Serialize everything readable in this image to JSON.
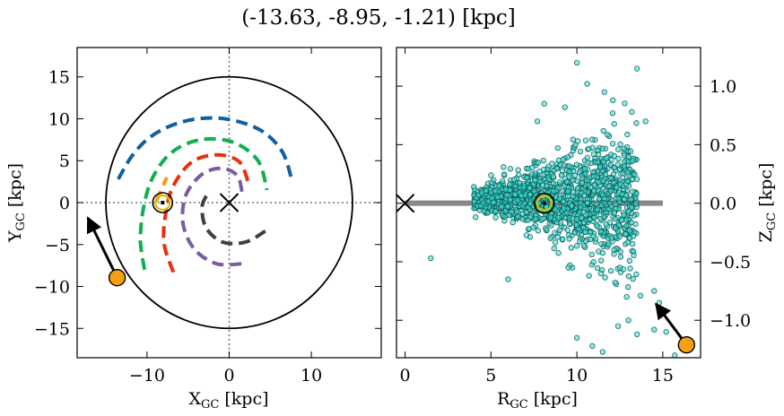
{
  "title": "(-13.63, -8.95, -1.21) [kpc]",
  "chart_data": [
    {
      "type": "scatter",
      "name": "galactic-plane-view",
      "xlabel": "X",
      "xlabel_sub": "GC",
      "xlabel_unit": " [kpc]",
      "ylabel": "Y",
      "ylabel_sub": "GC",
      "ylabel_unit": " [kpc]",
      "xlim": [
        -18.5,
        18.5
      ],
      "ylim": [
        -18.5,
        18.5
      ],
      "xticks": [
        -10,
        0,
        10
      ],
      "yticks": [
        -15,
        -10,
        -5,
        0,
        5,
        10,
        15
      ],
      "tick_labels_x": [
        "−10",
        "0",
        "10"
      ],
      "tick_labels_y": [
        "−15",
        "−10",
        "−5",
        "0",
        "5",
        "10",
        "15"
      ],
      "grid": false,
      "boundary_circle_radius": 15,
      "galactic_center": [
        0,
        0
      ],
      "sun": [
        -8.1,
        0.0
      ],
      "object": [
        -13.63,
        -8.95
      ],
      "arrow_to": [
        -17.2,
        -1.8
      ],
      "spiral_arms": [
        {
          "color": "#1060a0",
          "points": [
            [
              -13.5,
              2.8
            ],
            [
              -11.8,
              5.6
            ],
            [
              -9.5,
              7.9
            ],
            [
              -6.2,
              9.5
            ],
            [
              -2.5,
              10.1
            ],
            [
              1.0,
              9.7
            ],
            [
              4.2,
              8.4
            ],
            [
              6.5,
              6.0
            ],
            [
              7.6,
              2.8
            ]
          ]
        },
        {
          "color": "#10b050",
          "points": [
            [
              -10.3,
              -8.0
            ],
            [
              -10.8,
              -4.5
            ],
            [
              -10.4,
              -0.5
            ],
            [
              -9.3,
              3.0
            ],
            [
              -7.0,
              6.0
            ],
            [
              -3.5,
              7.5
            ],
            [
              0.5,
              7.2
            ],
            [
              3.5,
              5.0
            ],
            [
              4.6,
              1.5
            ]
          ]
        },
        {
          "color": "#e83010",
          "points": [
            [
              -6.8,
              -8.3
            ],
            [
              -7.9,
              -5.0
            ],
            [
              -7.8,
              -1.8
            ],
            [
              -6.9,
              1.8
            ],
            [
              -4.6,
              4.8
            ],
            [
              -1.5,
              5.7
            ],
            [
              1.2,
              4.9
            ],
            [
              2.3,
              2.5
            ]
          ]
        },
        {
          "color": "#f0a010",
          "points": [
            [
              -8.9,
              0.1
            ],
            [
              -7.6,
              3.0
            ]
          ]
        },
        {
          "color": "#7a5ca0",
          "points": [
            [
              1.5,
              -7.3
            ],
            [
              -1.5,
              -7.3
            ],
            [
              -4.2,
              -5.6
            ],
            [
              -5.6,
              -2.6
            ],
            [
              -5.3,
              0.8
            ],
            [
              -3.4,
              3.3
            ],
            [
              -1.0,
              4.1
            ],
            [
              1.0,
              3.2
            ],
            [
              1.6,
              1.0
            ]
          ]
        },
        {
          "color": "#404040",
          "points": [
            [
              4.4,
              -3.4
            ],
            [
              2.0,
              -4.7
            ],
            [
              -0.8,
              -4.7
            ],
            [
              -2.8,
              -3.0
            ],
            [
              -3.3,
              -0.5
            ],
            [
              -2.6,
              1.1
            ]
          ]
        }
      ]
    },
    {
      "type": "scatter",
      "name": "edge-on-view",
      "xlabel": "R",
      "xlabel_sub": "GC",
      "xlabel_unit": " [kpc]",
      "ylabel": "Z",
      "ylabel_sub": "GC",
      "ylabel_unit": " [kpc]",
      "xlim": [
        -0.5,
        17.2
      ],
      "ylim": [
        -1.32,
        1.33
      ],
      "xticks": [
        0,
        5,
        10,
        15
      ],
      "yticks": [
        1.0,
        0.5,
        0.0,
        -0.5,
        -1.0
      ],
      "tick_labels_x": [
        "0",
        "5",
        "10",
        "15"
      ],
      "tick_labels_y": [
        "1.0",
        "0.5",
        "0.0",
        "−0.5",
        "−1.0"
      ],
      "grid": false,
      "disk_band": [
        0,
        15
      ],
      "galactic_center": [
        0,
        0
      ],
      "sun": [
        8.1,
        0.0
      ],
      "object": [
        16.38,
        -1.21
      ],
      "arrow_to": [
        14.6,
        -0.86
      ],
      "point_color": "#40e0d0",
      "outliers": [
        [
          10.0,
          1.2
        ],
        [
          13.5,
          1.15
        ],
        [
          9.3,
          0.82
        ],
        [
          10.6,
          1.02
        ],
        [
          12.1,
          0.88
        ],
        [
          8.1,
          0.85
        ],
        [
          11.6,
          0.95
        ],
        [
          7.7,
          0.7
        ],
        [
          13.2,
          0.78
        ],
        [
          14.0,
          0.7
        ],
        [
          1.5,
          -0.47
        ],
        [
          12.5,
          -0.55
        ],
        [
          12.9,
          -0.8
        ],
        [
          13.7,
          -0.79
        ],
        [
          14.5,
          -0.75
        ],
        [
          14.8,
          -0.85
        ],
        [
          13.0,
          -1.0
        ],
        [
          12.4,
          -1.05
        ],
        [
          14.5,
          -1.08
        ],
        [
          10.0,
          -1.15
        ],
        [
          10.9,
          -1.22
        ],
        [
          11.5,
          -1.27
        ],
        [
          13.5,
          -1.12
        ],
        [
          15.2,
          -1.1
        ],
        [
          15.7,
          -1.3
        ],
        [
          6.0,
          -0.65
        ],
        [
          11.4,
          -0.6
        ],
        [
          9.5,
          -0.55
        ]
      ]
    }
  ]
}
